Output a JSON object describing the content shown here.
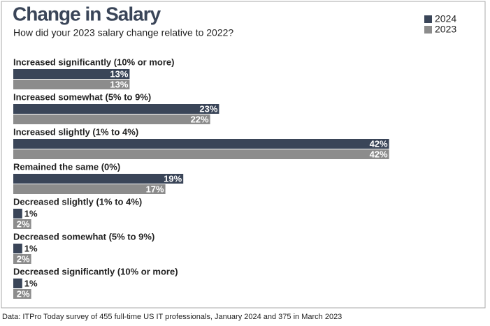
{
  "chart_data": {
    "type": "hbar",
    "title": "Change in Salary",
    "subtitle": "How did your 2023 salary change relative to 2022?",
    "categories": [
      "Increased significantly (10% or more)",
      "Increased somewhat (5% to 9%)",
      "Increased slightly (1% to 4%)",
      "Remained the same (0%)",
      "Decreased slightly (1% to 4%)",
      "Decreased somewhat (5% to 9%)",
      "Decreased significantly (10% or more)"
    ],
    "series": [
      {
        "name": "2024",
        "color": "#3a4558",
        "values": [
          13,
          23,
          42,
          19,
          1,
          1,
          1
        ],
        "value_labels": [
          "13%",
          "23%",
          "42%",
          "19%",
          "1%",
          "1%",
          "1%"
        ]
      },
      {
        "name": "2023",
        "color": "#8c8c8c",
        "values": [
          13,
          22,
          42,
          17,
          2,
          2,
          2
        ],
        "value_labels": [
          "13%",
          "22%",
          "42%",
          "17%",
          "2%",
          "2%",
          "2%"
        ]
      }
    ],
    "legend": "top-right",
    "source": "Data: ITPro Today survey of 455 full-time US IT professionals, January 2024 and 375 in March 2023"
  }
}
